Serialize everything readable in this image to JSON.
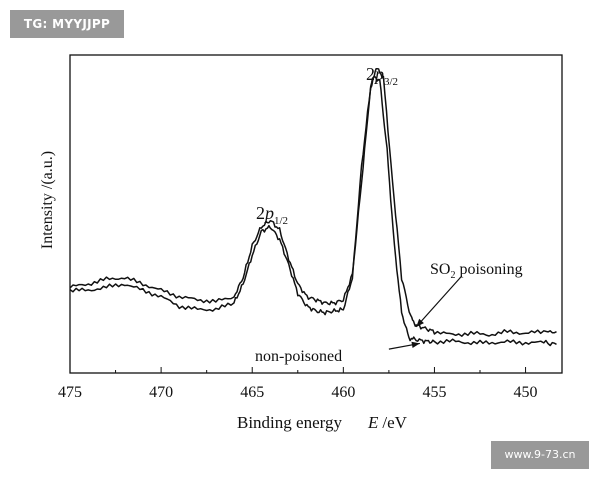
{
  "watermarks": {
    "top_left": "TG: MYYJJPP",
    "bottom_right": "www.9-73.cn"
  },
  "colors": {
    "line": "#111111",
    "watermark_bg": "#999999",
    "watermark_text": "#ffffff"
  },
  "chart_data": {
    "type": "line",
    "title": "",
    "xlabel": "Binding energy",
    "xlabel_var": "E",
    "xlabel_unit": "/eV",
    "ylabel": "Intensity /(a.u.)",
    "xlim": [
      475,
      448
    ],
    "ylim": [
      0,
      100
    ],
    "x_ticks": [
      475,
      470,
      465,
      460,
      455,
      450
    ],
    "y_ticks_shown": false,
    "annotations": [
      {
        "id": "p32",
        "base": "2",
        "italic": "p",
        "sub": "3/2",
        "x": 458.2,
        "y": 96
      },
      {
        "id": "p12",
        "base": "2",
        "italic": "p",
        "sub": "1/2",
        "x": 464.0,
        "y": 52
      },
      {
        "id": "so2",
        "base": "SO",
        "sub": "2",
        "rest": " poisoning",
        "x": 452.5,
        "y": 36
      },
      {
        "id": "non",
        "text": "non-poisoned",
        "x": 460.0,
        "y": 6
      }
    ],
    "arrows": [
      {
        "from": [
          453.5,
          30.5
        ],
        "to": [
          456.0,
          14.5
        ]
      },
      {
        "from": [
          457.5,
          7.5
        ],
        "to": [
          455.8,
          9.3
        ]
      }
    ],
    "series": [
      {
        "name": "SO2 poisoning",
        "points": [
          [
            475,
            27
          ],
          [
            474,
            28
          ],
          [
            473,
            29.5
          ],
          [
            472,
            30
          ],
          [
            471,
            28
          ],
          [
            470,
            26
          ],
          [
            469,
            24
          ],
          [
            468,
            23
          ],
          [
            467,
            22.5
          ],
          [
            466,
            24
          ],
          [
            465.5,
            30
          ],
          [
            465,
            40
          ],
          [
            464.5,
            46
          ],
          [
            464,
            48
          ],
          [
            463.5,
            45
          ],
          [
            463,
            36
          ],
          [
            462.5,
            28
          ],
          [
            462,
            24
          ],
          [
            461.5,
            23
          ],
          [
            461,
            22
          ],
          [
            460.5,
            22
          ],
          [
            460,
            23
          ],
          [
            459.5,
            31
          ],
          [
            459,
            60
          ],
          [
            458.5,
            90
          ],
          [
            458.2,
            96
          ],
          [
            457.8,
            93
          ],
          [
            457.3,
            60
          ],
          [
            456.8,
            30
          ],
          [
            456.3,
            17.5
          ],
          [
            456,
            15
          ],
          [
            455.5,
            14
          ],
          [
            455,
            13
          ],
          [
            454,
            12
          ],
          [
            453,
            12.5
          ],
          [
            452,
            12
          ],
          [
            451,
            13
          ],
          [
            450,
            12.5
          ],
          [
            449,
            13
          ],
          [
            448.3,
            13
          ]
        ]
      },
      {
        "name": "non-poisoned",
        "points": [
          [
            475,
            26
          ],
          [
            474,
            26
          ],
          [
            473,
            27
          ],
          [
            472,
            28
          ],
          [
            471,
            26
          ],
          [
            470,
            24
          ],
          [
            469,
            21
          ],
          [
            468,
            20
          ],
          [
            467,
            20
          ],
          [
            466,
            22
          ],
          [
            465.5,
            28
          ],
          [
            465,
            37
          ],
          [
            464.5,
            44.5
          ],
          [
            464,
            46
          ],
          [
            463.5,
            42
          ],
          [
            463,
            34
          ],
          [
            462.5,
            25
          ],
          [
            462,
            21
          ],
          [
            461.5,
            19.5
          ],
          [
            461,
            19
          ],
          [
            460.5,
            19.5
          ],
          [
            460,
            20
          ],
          [
            459.5,
            30
          ],
          [
            459,
            65
          ],
          [
            458.5,
            90
          ],
          [
            458.3,
            93
          ],
          [
            458,
            92
          ],
          [
            457.6,
            70
          ],
          [
            457.2,
            40
          ],
          [
            456.8,
            19
          ],
          [
            456.4,
            11
          ],
          [
            456,
            10.5
          ],
          [
            455.5,
            10
          ],
          [
            455,
            9.8
          ],
          [
            454,
            10
          ],
          [
            453,
            9.5
          ],
          [
            452,
            9.5
          ],
          [
            451,
            9.8
          ],
          [
            450,
            9.5
          ],
          [
            449,
            9.6
          ],
          [
            448.3,
            9
          ]
        ]
      }
    ]
  }
}
